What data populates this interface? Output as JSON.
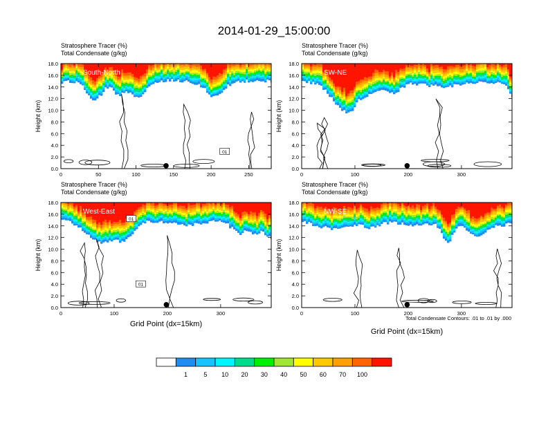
{
  "figure": {
    "title": "2014-01-29_15:00:00",
    "x_axis_label": "Grid Point (dx=15km)",
    "contour_note": "Total Condensate Contours: .01 to .01 by .000"
  },
  "chart_data": [
    {
      "type": "heatmap",
      "fill_variable": "Stratosphere Tracer   (%)",
      "contour_variable": "Total Condensate   (g/kg)",
      "label": "South-North",
      "ylabel": "Height (km)",
      "xlim": [
        0,
        280
      ],
      "ylim": [
        0,
        18
      ],
      "x_ticks": [
        "0",
        "50",
        "100",
        "150",
        "200",
        "250"
      ],
      "y_ticks": [
        "0.0",
        "2.0",
        "4.0",
        "6.0",
        "8.0",
        "10.0",
        "12.0",
        "14.0",
        "16.0",
        "18.0"
      ],
      "marker_x": 140,
      "tracer_base_km": 14.8,
      "contour_labels": [
        {
          "x": 218,
          "y": 2.9,
          "text": "01"
        }
      ]
    },
    {
      "type": "heatmap",
      "fill_variable": "Stratosphere Tracer   (%)",
      "contour_variable": "Total Condensate   (g/kg)",
      "label": "SW-NE",
      "ylabel": "Height (km)",
      "xlim": [
        0,
        395
      ],
      "ylim": [
        0,
        18
      ],
      "x_ticks": [
        "0",
        "100",
        "200",
        "300"
      ],
      "y_ticks": [
        "0.0",
        "2.0",
        "4.0",
        "6.0",
        "8.0",
        "10.0",
        "12.0",
        "14.0",
        "16.0",
        "18.0"
      ],
      "marker_x": 198,
      "tracer_base_km": 14.5,
      "contour_labels": []
    },
    {
      "type": "heatmap",
      "fill_variable": "Stratosphere Tracer   (%)",
      "contour_variable": "Total Condensate   (g/kg)",
      "label": "West-East",
      "ylabel": "Height (km)",
      "xlim": [
        0,
        395
      ],
      "ylim": [
        0,
        18
      ],
      "x_ticks": [
        "0",
        "100",
        "200",
        "300"
      ],
      "y_ticks": [
        "0.0",
        "2.0",
        "4.0",
        "6.0",
        "8.0",
        "10.0",
        "12.0",
        "14.0",
        "16.0",
        "18.0"
      ],
      "marker_x": 198,
      "tracer_base_km": 14.6,
      "contour_labels": [
        {
          "x": 132,
          "y": 15.2,
          "text": "01"
        },
        {
          "x": 150,
          "y": 4.0,
          "text": "01"
        }
      ]
    },
    {
      "type": "heatmap",
      "fill_variable": "Stratosphere Tracer   (%)",
      "contour_variable": "Total Condensate   (g/kg)",
      "label": "NW-SE",
      "ylabel": "Height (km)",
      "xlim": [
        0,
        395
      ],
      "ylim": [
        0,
        18
      ],
      "x_ticks": [
        "0",
        "100",
        "200",
        "300"
      ],
      "y_ticks": [
        "0.0",
        "2.0",
        "4.0",
        "6.0",
        "8.0",
        "10.0",
        "12.0",
        "14.0",
        "16.0",
        "18.0"
      ],
      "marker_x": 198,
      "tracer_base_km": 14.6,
      "contour_labels": []
    }
  ],
  "colorbar": {
    "labels": [
      "1",
      "5",
      "10",
      "20",
      "30",
      "40",
      "50",
      "60",
      "70",
      "100"
    ],
    "colors": [
      "#ffffff",
      "#1e8cf0",
      "#14c3ff",
      "#00f5ff",
      "#00dc8c",
      "#00f000",
      "#a0e632",
      "#ffff00",
      "#ffc800",
      "#ffa000",
      "#ff6400",
      "#ff1400"
    ]
  }
}
